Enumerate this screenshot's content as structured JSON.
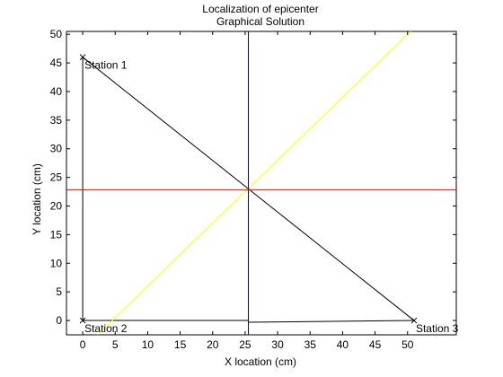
{
  "chart_data": {
    "type": "line",
    "title": "Localization of epicenter",
    "subtitle": "Graphical Solution",
    "xlabel": "X location (cm)",
    "ylabel": "Y location (cm)",
    "xlim": [
      -2.5,
      57.5
    ],
    "ylim": [
      -2.5,
      50.5
    ],
    "x_ticks": [
      0,
      5,
      10,
      15,
      20,
      25,
      30,
      35,
      40,
      45,
      50
    ],
    "y_ticks": [
      0,
      5,
      10,
      15,
      20,
      25,
      30,
      35,
      40,
      45,
      50
    ],
    "grid": false,
    "legend": "none",
    "stations": [
      {
        "label": "Station 1",
        "x": 0,
        "y": 46
      },
      {
        "label": "Station 2",
        "x": 0,
        "y": 0
      },
      {
        "label": "Station 3",
        "x": 51,
        "y": 0
      }
    ],
    "series": [
      {
        "color": "#000000",
        "points": [
          [
            0,
            46
          ],
          [
            0,
            0
          ]
        ]
      },
      {
        "color": "#000000",
        "points": [
          [
            0,
            0
          ],
          [
            25.5,
            0
          ]
        ]
      },
      {
        "color": "#000000",
        "points": [
          [
            25.5,
            -0.3
          ],
          [
            51,
            0
          ]
        ]
      },
      {
        "color": "#000000",
        "points": [
          [
            0,
            46
          ],
          [
            51,
            0
          ]
        ]
      },
      {
        "color": "#ffff00",
        "points": [
          [
            2.3,
            -2.5
          ],
          [
            50.5,
            50.5
          ]
        ]
      },
      {
        "color": "#000080",
        "points": [
          [
            25.5,
            -2.5
          ],
          [
            25.5,
            50.5
          ]
        ]
      },
      {
        "color": "#ff0000",
        "points": [
          [
            -2.5,
            22.8
          ],
          [
            57.5,
            22.8
          ]
        ]
      }
    ]
  }
}
